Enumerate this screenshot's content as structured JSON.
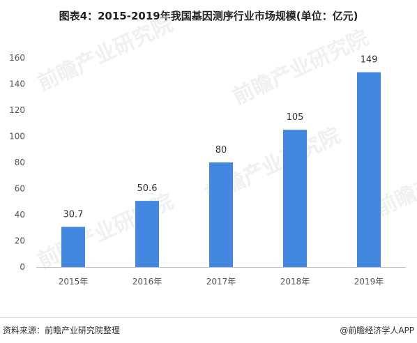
{
  "title": "图表4：2015-2019年我国基因测序行业市场规模(单位：亿元)",
  "source": "资料来源：前瞻产业研究院整理",
  "brand": "@前瞻经济学人APP",
  "watermark": "前瞻产业研究院",
  "colors": {
    "bar": "#4287e0",
    "axis": "#bfbfbf"
  },
  "chart_data": {
    "type": "bar",
    "categories": [
      "2015年",
      "2016年",
      "2017年",
      "2018年",
      "2019年"
    ],
    "values": [
      30.7,
      50.6,
      80,
      105,
      149
    ],
    "labels": [
      "30.7",
      "50.6",
      "80",
      "105",
      "149"
    ],
    "ylim": [
      0,
      160
    ],
    "yticks": [
      0,
      20,
      40,
      60,
      80,
      100,
      120,
      140,
      160
    ],
    "grid": false,
    "title": "图表4：2015-2019年我国基因测序行业市场规模(单位：亿元)",
    "xlabel": "",
    "ylabel": ""
  }
}
